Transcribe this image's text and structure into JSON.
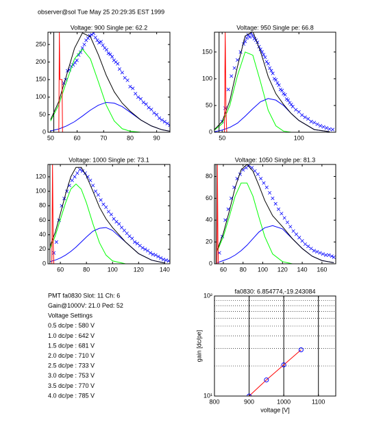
{
  "header": "observer@sol  Tue May 25 20:29:35 EST 1999",
  "info": [
    "PMT fa0830 Slot: 11 Ch: 6",
    "Gain@1000V: 21.0 Ped: 52",
    "Voltage Settings",
    "0.5 dc/pe : 580 V",
    "1.0 dc/pe : 642 V",
    "1.5 dc/pe : 681 V",
    "2.0 dc/pe : 710 V",
    "2.5 dc/pe : 733 V",
    "3.0 dc/pe : 753 V",
    "3.5 dc/pe : 770 V",
    "4.0 dc/pe : 785 V"
  ],
  "chart_data": [
    {
      "type": "line",
      "title": "Voltage: 900 Single pe: 62.2",
      "xlim": [
        49,
        95
      ],
      "ylim": [
        0,
        285
      ],
      "xticks": [
        50,
        60,
        70,
        80,
        90
      ],
      "yticks": [
        0,
        50,
        100,
        150,
        200,
        250
      ],
      "curve_x": [
        50,
        53,
        56,
        59,
        62,
        65,
        68,
        71,
        74,
        77,
        80,
        84,
        88,
        92,
        95
      ],
      "series": [
        {
          "marker": "x",
          "color": "#0000ff",
          "x": [
            55,
            55.7,
            56.4,
            57.1,
            57.8,
            58.5,
            59.2,
            59.9,
            60.6,
            61.3,
            62,
            62.7,
            63.4,
            64.1,
            64.8,
            65.5,
            66.2,
            66.9,
            67.6,
            68.3,
            69,
            69.7,
            70.4,
            71.1,
            71.8,
            72.5,
            73.2,
            73.9,
            74.6,
            75.3,
            76,
            77,
            78,
            79,
            80,
            81,
            82,
            83,
            84,
            85,
            86,
            87,
            88,
            89,
            90,
            91,
            92,
            93,
            94,
            95
          ],
          "values": [
            140,
            150,
            175,
            178,
            188,
            192,
            198,
            205,
            220,
            228,
            240,
            250,
            262,
            268,
            275,
            278,
            282,
            270,
            262,
            255,
            258,
            248,
            240,
            235,
            225,
            222,
            215,
            205,
            200,
            195,
            180,
            170,
            155,
            148,
            130,
            125,
            110,
            100,
            95,
            85,
            80,
            70,
            65,
            55,
            50,
            40,
            35,
            30,
            25,
            20
          ]
        },
        {
          "color": "#00ff00",
          "values": [
            32,
            77,
            144,
            209,
            237,
            209,
            144,
            77,
            32,
            10,
            3,
            0,
            0,
            0,
            0
          ]
        },
        {
          "color": "#0000ff",
          "values": [
            4,
            9,
            18,
            30,
            46,
            63,
            77,
            85,
            83,
            73,
            57,
            35,
            18,
            7,
            3
          ]
        },
        {
          "color": "#000000",
          "values": [
            36,
            86,
            162,
            239,
            283,
            272,
            221,
            162,
            115,
            83,
            60,
            35,
            18,
            7,
            3
          ]
        },
        {
          "color": "#ff0000",
          "x": [
            49,
            53.1,
            53.3,
            53.5,
            54.3,
            54.5,
            95
          ],
          "values": [
            0,
            0,
            285,
            150,
            150,
            0,
            0
          ]
        },
        {
          "color": "#000000",
          "x": [
            51.2,
            51.2
          ],
          "values": [
            0,
            285
          ]
        }
      ]
    },
    {
      "type": "line",
      "title": "Voltage: 950 Single pe: 66.8",
      "xlim": [
        45,
        124
      ],
      "ylim": [
        0,
        187
      ],
      "xticks": [
        50,
        100
      ],
      "yticks": [
        0,
        50,
        100,
        150
      ],
      "curve_x": [
        45,
        50,
        55,
        60,
        65,
        70,
        75,
        80,
        85,
        90,
        95,
        100,
        110,
        120
      ],
      "series": [
        {
          "marker": "x",
          "color": "#0000ff",
          "x": [
            50,
            52,
            54,
            56,
            58,
            60,
            62,
            64,
            65,
            66,
            67,
            68,
            69,
            70,
            71,
            72,
            73,
            74,
            75,
            76,
            77,
            78,
            79,
            80,
            81,
            82,
            83,
            84,
            85,
            86,
            87,
            88,
            89,
            90,
            91,
            92,
            93,
            94,
            95,
            96,
            98,
            100,
            102,
            104,
            106,
            108,
            110,
            112,
            114,
            116,
            118,
            120,
            122
          ],
          "values": [
            20,
            45,
            80,
            105,
            120,
            135,
            150,
            165,
            170,
            176,
            182,
            178,
            185,
            180,
            175,
            172,
            168,
            160,
            155,
            150,
            145,
            140,
            132,
            128,
            120,
            115,
            110,
            100,
            98,
            92,
            88,
            80,
            78,
            72,
            70,
            62,
            60,
            55,
            52,
            48,
            42,
            38,
            32,
            28,
            25,
            20,
            18,
            15,
            12,
            10,
            8,
            6,
            5
          ]
        },
        {
          "color": "#00ff00",
          "values": [
            4,
            16,
            50,
            106,
            150,
            144,
            94,
            41,
            12,
            2,
            0,
            0,
            0,
            0
          ]
        },
        {
          "color": "#0000ff",
          "values": [
            1,
            4,
            9,
            17,
            30,
            44,
            57,
            63,
            60,
            50,
            35,
            22,
            5,
            1
          ]
        },
        {
          "color": "#000000",
          "values": [
            5,
            20,
            59,
            123,
            180,
            188,
            151,
            104,
            72,
            52,
            35,
            22,
            5,
            1
          ]
        },
        {
          "color": "#ff0000",
          "x": [
            45,
            51.5,
            52,
            52.5,
            53,
            124
          ],
          "values": [
            0,
            0,
            187,
            40,
            0,
            0
          ]
        },
        {
          "color": "#000000",
          "x": [
            48,
            48
          ],
          "values": [
            0,
            187
          ]
        }
      ]
    },
    {
      "type": "line",
      "title": "Voltage: 1000 Single pe: 73.1",
      "xlim": [
        50.5,
        144
      ],
      "ylim": [
        0,
        137
      ],
      "xticks": [
        60,
        80,
        100,
        120,
        140
      ],
      "yticks": [
        0,
        20,
        40,
        60,
        80,
        100,
        120
      ],
      "curve_x": [
        52,
        56,
        60,
        64,
        68,
        72,
        76,
        80,
        85,
        90,
        95,
        100,
        110,
        120,
        130,
        140
      ],
      "series": [
        {
          "marker": "x",
          "color": "#0000ff",
          "x": [
            55,
            57,
            59,
            61,
            63,
            65,
            67,
            69,
            71,
            73,
            75,
            77,
            79,
            81,
            83,
            85,
            87,
            89,
            91,
            93,
            95,
            97,
            99,
            101,
            103,
            105,
            107,
            109,
            111,
            113,
            115,
            117,
            119,
            121,
            123,
            125,
            127,
            129,
            131,
            133,
            135,
            137,
            139,
            141,
            143
          ],
          "values": [
            15,
            30,
            60,
            80,
            90,
            100,
            108,
            115,
            120,
            125,
            130,
            128,
            125,
            120,
            115,
            108,
            100,
            95,
            88,
            82,
            78,
            72,
            68,
            62,
            58,
            55,
            50,
            46,
            42,
            38,
            35,
            30,
            28,
            25,
            22,
            20,
            18,
            15,
            13,
            12,
            10,
            8,
            6,
            5,
            4
          ]
        },
        {
          "color": "#00ff00",
          "values": [
            21,
            38,
            61,
            84,
            103,
            110,
            103,
            84,
            55,
            29,
            12,
            4,
            0,
            0,
            0,
            0
          ]
        },
        {
          "color": "#0000ff",
          "values": [
            3,
            5,
            8,
            12,
            17,
            23,
            30,
            37,
            45,
            49,
            50,
            46,
            30,
            14,
            5,
            1
          ]
        },
        {
          "color": "#000000",
          "values": [
            24,
            43,
            69,
            96,
            120,
            133,
            133,
            121,
            100,
            78,
            62,
            50,
            30,
            14,
            5,
            1
          ]
        },
        {
          "color": "#ff0000",
          "x": [
            50.5,
            53.5,
            54,
            54.5,
            55,
            144
          ],
          "values": [
            0,
            0,
            137,
            30,
            0,
            0
          ]
        },
        {
          "color": "#000000",
          "x": [
            52,
            52
          ],
          "values": [
            0,
            137
          ]
        }
      ]
    },
    {
      "type": "line",
      "title": "Voltage: 1050 Single pe: 81.3",
      "xlim": [
        51,
        174
      ],
      "ylim": [
        0,
        91
      ],
      "xticks": [
        60,
        80,
        100,
        120,
        140,
        160
      ],
      "yticks": [
        0,
        20,
        40,
        60,
        80
      ],
      "curve_x": [
        54,
        60,
        66,
        72,
        78,
        84,
        90,
        96,
        102,
        110,
        120,
        130,
        140,
        150,
        160,
        172
      ],
      "series": [
        {
          "marker": "x",
          "color": "#0000ff",
          "x": [
            56,
            59,
            62,
            65,
            68,
            71,
            74,
            77,
            80,
            83,
            86,
            89,
            92,
            95,
            98,
            101,
            104,
            107,
            110,
            113,
            116,
            119,
            122,
            125,
            128,
            131,
            134,
            137,
            140,
            143,
            146,
            149,
            152,
            155,
            158,
            161,
            164,
            167,
            170,
            172
          ],
          "values": [
            10,
            25,
            40,
            50,
            60,
            70,
            78,
            82,
            86,
            88,
            90,
            88,
            85,
            82,
            78,
            74,
            70,
            65,
            60,
            55,
            50,
            46,
            42,
            38,
            34,
            30,
            27,
            24,
            21,
            18,
            16,
            14,
            12,
            11,
            10,
            9,
            8,
            8,
            7,
            6
          ]
        },
        {
          "color": "#00ff00",
          "values": [
            12,
            25,
            43,
            62,
            74,
            74,
            62,
            43,
            25,
            9,
            2,
            0,
            0,
            0,
            0,
            0
          ]
        },
        {
          "color": "#0000ff",
          "values": [
            1,
            3,
            5,
            8,
            12,
            17,
            23,
            29,
            33,
            35,
            32,
            23,
            14,
            7,
            3,
            1
          ]
        },
        {
          "color": "#000000",
          "values": [
            13,
            28,
            48,
            70,
            86,
            91,
            85,
            72,
            58,
            44,
            34,
            23,
            14,
            7,
            3,
            1
          ]
        },
        {
          "color": "#ff0000",
          "x": [
            51,
            53.5,
            54,
            54.5,
            55,
            174
          ],
          "values": [
            0,
            0,
            91,
            20,
            0,
            0
          ]
        },
        {
          "color": "#000000",
          "x": [
            52.5,
            52.5
          ],
          "values": [
            0,
            91
          ]
        }
      ]
    },
    {
      "type": "line",
      "title": "fa0830: 6.854774,-19.243084",
      "xlabel": "voltage [V]",
      "ylabel": "gain [dc/pe]",
      "log_y": true,
      "xgrid": true,
      "xlim": [
        800,
        1150
      ],
      "ylim": [
        10,
        100
      ],
      "xticks": [
        800,
        900,
        1000,
        1100
      ],
      "yticks": [
        {
          "value": 10,
          "label": "10¹"
        },
        {
          "value": 100,
          "label": "10²"
        }
      ],
      "yminor": [
        20,
        30,
        40,
        50,
        60,
        70,
        80,
        90
      ],
      "series": [
        {
          "color": "#ff0000",
          "marker": "o",
          "marker_color": "#0000ff",
          "x": [
            900,
            950,
            1000,
            1050
          ],
          "values": [
            10,
            14.5,
            20.5,
            29
          ]
        }
      ]
    }
  ]
}
